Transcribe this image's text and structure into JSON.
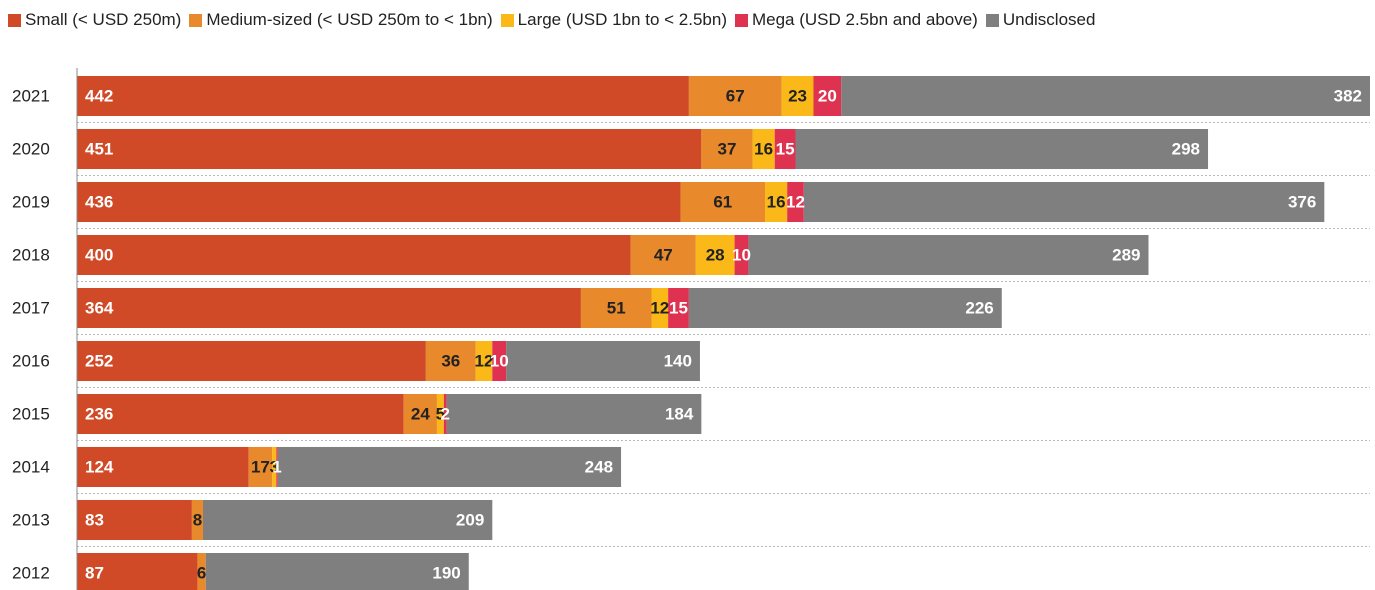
{
  "chart_data": {
    "type": "stacked-bar-horizontal",
    "categories": [
      "2021",
      "2020",
      "2019",
      "2018",
      "2017",
      "2016",
      "2015",
      "2014",
      "2013",
      "2012"
    ],
    "series": [
      {
        "name": "Small (< USD 250m)",
        "color": "#d04a27",
        "values": [
          442,
          451,
          436,
          400,
          364,
          252,
          236,
          124,
          83,
          87
        ]
      },
      {
        "name": "Medium-sized (< USD 250m to < 1bn)",
        "color": "#e8892b",
        "values": [
          67,
          37,
          61,
          47,
          51,
          36,
          24,
          17,
          8,
          6
        ]
      },
      {
        "name": "Large (USD 1bn to < 2.5bn)",
        "color": "#fbb819",
        "values": [
          23,
          16,
          16,
          28,
          12,
          12,
          5,
          3,
          0,
          0
        ]
      },
      {
        "name": "Mega (USD 2.5bn and above)",
        "color": "#df3251",
        "values": [
          20,
          15,
          12,
          10,
          15,
          10,
          2,
          1,
          0,
          0
        ]
      },
      {
        "name": "Undisclosed",
        "color": "#7f7f7f",
        "values": [
          382,
          298,
          376,
          289,
          226,
          140,
          184,
          248,
          209,
          190
        ]
      }
    ]
  }
}
